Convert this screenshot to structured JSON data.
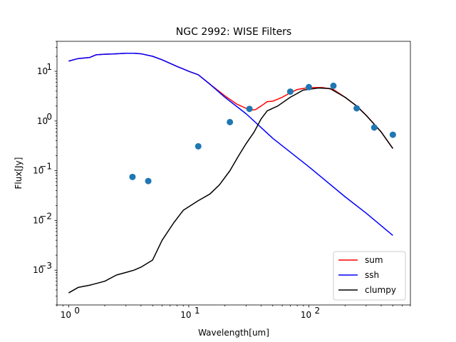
{
  "chart_data": {
    "type": "line",
    "title": "NGC 2992: WISE Filters",
    "xlabel": "Wavelength[um]",
    "ylabel": "Flux[Jy]",
    "xscale": "log",
    "yscale": "log",
    "xlim": [
      0.8,
      700
    ],
    "ylim": [
      0.0002,
      40
    ],
    "grid": false,
    "legend_position": "lower right",
    "x_ticks": [
      {
        "value": 1,
        "base": "10",
        "exp": "0"
      },
      {
        "value": 10,
        "base": "10",
        "exp": "1"
      },
      {
        "value": 100,
        "base": "10",
        "exp": "2"
      }
    ],
    "y_ticks": [
      {
        "value": 0.001,
        "base": "10",
        "exp": "−3"
      },
      {
        "value": 0.01,
        "base": "10",
        "exp": "−2"
      },
      {
        "value": 0.1,
        "base": "10",
        "exp": "−1"
      },
      {
        "value": 1,
        "base": "10",
        "exp": "0"
      },
      {
        "value": 10,
        "base": "10",
        "exp": "1"
      }
    ],
    "series": [
      {
        "name": "sum",
        "color": "#ff0000",
        "x": [
          1.0,
          1.2,
          1.5,
          1.7,
          2.0,
          2.5,
          3.0,
          3.5,
          4.0,
          5.0,
          6.0,
          8.0,
          10.0,
          12.0,
          15.0,
          20.0,
          25.0,
          30.0,
          33.0,
          36.0,
          40.0,
          45.0,
          50.0,
          60.0,
          70.0,
          80.0,
          100.0,
          130.0,
          160.0,
          200.0,
          250.0,
          300.0,
          400.0,
          500.0
        ],
        "y": [
          16.0,
          18.0,
          19.0,
          21.5,
          22.0,
          22.5,
          23.0,
          23.0,
          22.5,
          20.0,
          17.0,
          12.5,
          10.0,
          8.5,
          5.5,
          3.2,
          2.2,
          1.8,
          1.65,
          1.7,
          2.0,
          2.45,
          2.5,
          3.0,
          3.7,
          4.3,
          4.7,
          4.7,
          4.3,
          3.0,
          2.0,
          1.3,
          0.6,
          0.28
        ]
      },
      {
        "name": "ssh",
        "color": "#0000ff",
        "x": [
          1.0,
          1.2,
          1.5,
          1.7,
          2.0,
          2.5,
          3.0,
          3.5,
          4.0,
          5.0,
          6.0,
          8.0,
          10.0,
          12.0,
          15.0,
          20.0,
          30.0,
          50.0,
          100.0,
          200.0,
          300.0,
          500.0
        ],
        "y": [
          16.0,
          18.0,
          19.0,
          21.5,
          22.0,
          22.5,
          23.0,
          23.0,
          22.5,
          20.0,
          17.0,
          12.5,
          10.0,
          8.5,
          5.5,
          3.0,
          1.4,
          0.45,
          0.12,
          0.03,
          0.014,
          0.005
        ]
      },
      {
        "name": "clumpy",
        "color": "#000000",
        "x": [
          1.0,
          1.2,
          1.5,
          2.0,
          2.5,
          3.0,
          3.5,
          4.0,
          5.0,
          6.0,
          7.5,
          9.0,
          12.0,
          15.0,
          18.0,
          22.0,
          26.0,
          30.0,
          35.0,
          40.0,
          45.0,
          55.0,
          70.0,
          90.0,
          120.0,
          150.0,
          200.0,
          250.0,
          300.0,
          400.0,
          500.0
        ],
        "y": [
          0.00035,
          0.00045,
          0.0005,
          0.0006,
          0.0008,
          0.0009,
          0.001,
          0.00115,
          0.0016,
          0.004,
          0.009,
          0.016,
          0.025,
          0.034,
          0.052,
          0.1,
          0.2,
          0.35,
          0.6,
          1.1,
          1.6,
          2.0,
          3.0,
          4.2,
          4.6,
          4.5,
          3.0,
          2.0,
          1.3,
          0.6,
          0.28
        ]
      },
      {
        "name": "",
        "type": "scatter",
        "color": "#1f77b4",
        "x": [
          3.4,
          4.6,
          12.0,
          22.0,
          32.0,
          70.0,
          100.0,
          160.0,
          250.0,
          350.0,
          500.0
        ],
        "y": [
          0.075,
          0.062,
          0.31,
          0.95,
          1.75,
          3.9,
          4.8,
          5.1,
          1.8,
          0.74,
          0.53
        ]
      }
    ]
  }
}
